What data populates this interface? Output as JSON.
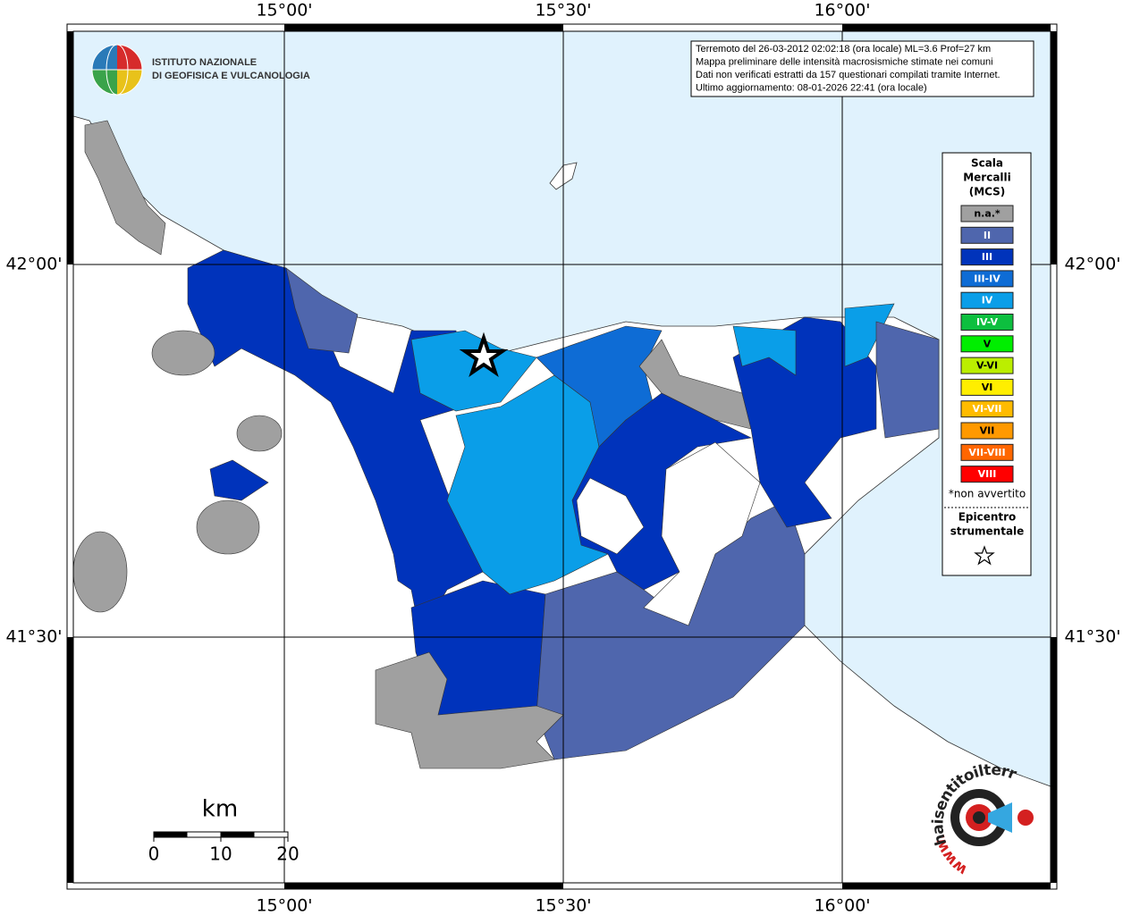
{
  "map": {
    "grid_labels": {
      "lon": [
        "15°00'",
        "15°30'",
        "16°00'"
      ],
      "lat": [
        "42°00'",
        "41°30'"
      ]
    },
    "info": [
      "Terremoto del 26-03-2012 02:02:18 (ora locale) ML=3.6 Prof=27 km",
      "Mappa preliminare delle intensità macrosismiche stimate nei comuni",
      "Dati non verificati estratti da 157 questionari compilati tramite Internet.",
      "Ultimo aggiornamento: 08-01-2026 22:41 (ora locale)"
    ],
    "institute": [
      "ISTITUTO NAZIONALE",
      "DI GEOFISICA E VULCANOLOGIA"
    ],
    "legend": {
      "title": [
        "Scala",
        "Mercalli",
        "(MCS)"
      ],
      "items": [
        {
          "label": "n.a.*",
          "color": "#a0a0a0"
        },
        {
          "label": "II",
          "color": "#4f66ad"
        },
        {
          "label": "III",
          "color": "#0033bb"
        },
        {
          "label": "III-IV",
          "color": "#0e6cd5"
        },
        {
          "label": "IV",
          "color": "#0a9ee8"
        },
        {
          "label": "IV-V",
          "color": "#0dbf3f"
        },
        {
          "label": "V",
          "color": "#00ee00"
        },
        {
          "label": "V-VI",
          "color": "#bbee00"
        },
        {
          "label": "VI",
          "color": "#ffee00"
        },
        {
          "label": "VI-VII",
          "color": "#ffbb00"
        },
        {
          "label": "VII",
          "color": "#ff9900"
        },
        {
          "label": "VII-VIII",
          "color": "#ff6600"
        },
        {
          "label": "VIII",
          "color": "#ff0000"
        }
      ],
      "footnote": "*non avvertito",
      "epicenter": [
        "Epicentro",
        "strumentale"
      ]
    },
    "scale": {
      "unit": "km",
      "labels": [
        "0",
        "10",
        "20"
      ]
    },
    "site": {
      "name": "haisentitoilterremoto.it",
      "prefix": "www."
    }
  }
}
